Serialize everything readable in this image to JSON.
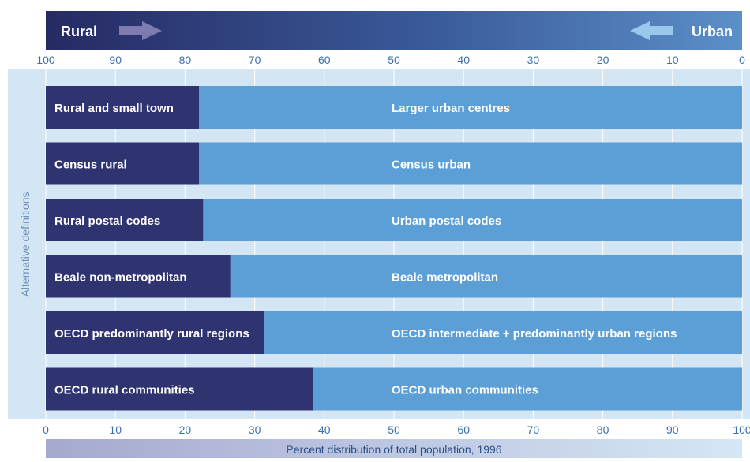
{
  "chart_data": {
    "type": "bar",
    "stacked": true,
    "orientation": "horizontal",
    "header_left": "Rural",
    "header_right": "Urban",
    "ylabel": "Alternative definitions",
    "xlabel": "Percent distribution of total population, 1996",
    "xlim": [
      0,
      100
    ],
    "bottom_ticks": [
      "0",
      "10",
      "20",
      "30",
      "40",
      "50",
      "60",
      "70",
      "80",
      "90",
      "100"
    ],
    "top_ticks": [
      "100",
      "90",
      "80",
      "70",
      "60",
      "50",
      "40",
      "30",
      "20",
      "10",
      "0"
    ],
    "rows": [
      {
        "rural_label": "Rural and small town",
        "urban_label": "Larger urban centres",
        "rural": 22.0,
        "urban": 78.0
      },
      {
        "rural_label": "Census rural",
        "urban_label": "Census urban",
        "rural": 22.0,
        "urban": 78.0
      },
      {
        "rural_label": "Rural postal codes",
        "urban_label": "Urban postal codes",
        "rural": 22.6,
        "urban": 77.4
      },
      {
        "rural_label": "Beale non-metropolitan",
        "urban_label": "Beale metropolitan",
        "rural": 26.5,
        "urban": 73.5
      },
      {
        "rural_label": "OECD predominantly rural regions",
        "urban_label": "OECD intermediate + predominantly urban regions",
        "rural": 31.4,
        "urban": 68.6
      },
      {
        "rural_label": "OECD rural communities",
        "urban_label": "OECD urban communities",
        "rural": 38.4,
        "urban": 61.6
      }
    ],
    "colors": {
      "rural": "#2f3370",
      "urban": "#5b9fd6",
      "panel": "#d4e5f4"
    }
  }
}
